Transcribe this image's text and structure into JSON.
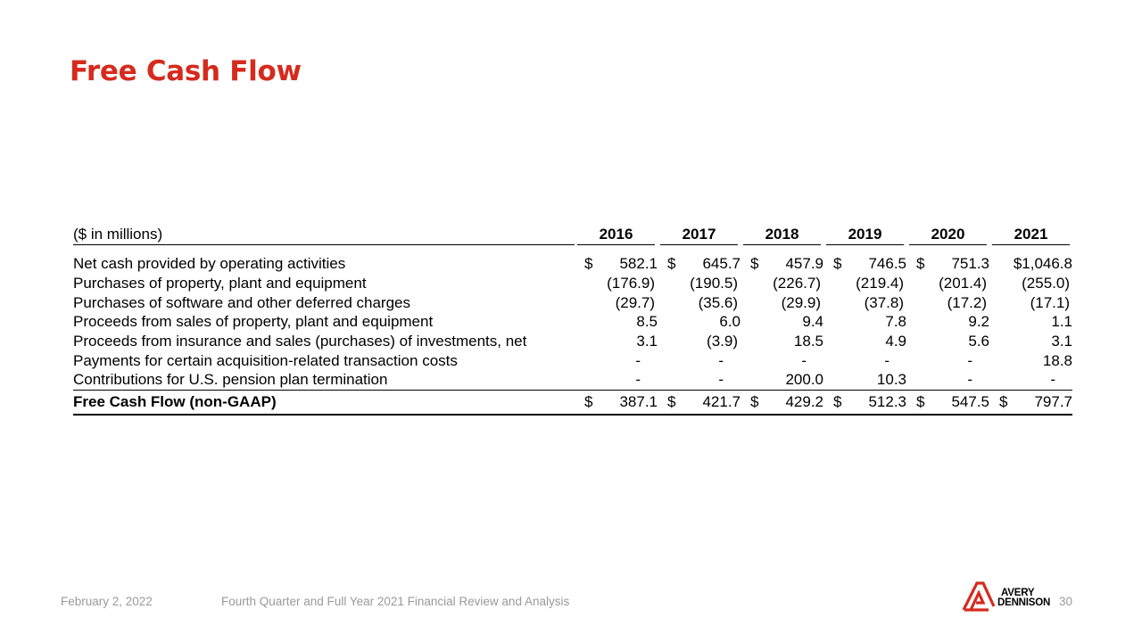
{
  "slide": {
    "title": "Free Cash Flow"
  },
  "table": {
    "units": "($ in millions)",
    "years": [
      "2016",
      "2017",
      "2018",
      "2019",
      "2020",
      "2021"
    ],
    "rows": [
      {
        "label": "Net cash provided by operating activities",
        "values": [
          "582.1",
          "645.7",
          "457.9",
          "746.5",
          "751.3",
          "$1,046.8"
        ],
        "dollar": [
          true,
          true,
          true,
          true,
          true,
          false
        ]
      },
      {
        "label": "Purchases of property, plant and equipment",
        "values": [
          "(176.9)",
          "(190.5)",
          "(226.7)",
          "(219.4)",
          "(201.4)",
          "(255.0)"
        ]
      },
      {
        "label": "Purchases of software and other deferred charges",
        "values": [
          "(29.7)",
          "(35.6)",
          "(29.9)",
          "(37.8)",
          "(17.2)",
          "(17.1)"
        ]
      },
      {
        "label": "Proceeds from sales of property, plant and equipment",
        "values": [
          "8.5",
          "6.0",
          "9.4",
          "7.8",
          "9.2",
          "1.1"
        ]
      },
      {
        "label": "Proceeds from insurance and sales (purchases) of investments, net",
        "values": [
          "3.1",
          "(3.9)",
          "18.5",
          "4.9",
          "5.6",
          "3.1"
        ]
      },
      {
        "label": "Payments for certain acquisition-related transaction costs",
        "values": [
          "-",
          "-",
          "-",
          "-",
          "-",
          "18.8"
        ]
      },
      {
        "label": "Contributions for U.S. pension plan termination",
        "values": [
          "-",
          "-",
          "200.0",
          "10.3",
          "-",
          "-"
        ]
      }
    ],
    "total": {
      "label": "Free Cash Flow (non-GAAP)",
      "values": [
        "387.1",
        "421.7",
        "429.2",
        "512.3",
        "547.5",
        "797.7"
      ],
      "dollar_sign": "$"
    }
  },
  "footer": {
    "date": "February 2, 2022",
    "center": "Fourth Quarter and Full Year 2021 Financial Review and Analysis",
    "page": "30"
  },
  "logo": {
    "line1": "AVERY",
    "line2": "DENNISON",
    "color": "#d52b1e"
  }
}
